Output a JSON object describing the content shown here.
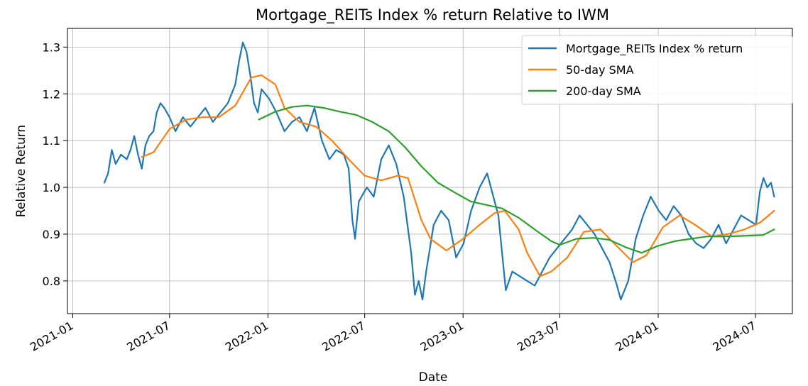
{
  "chart_data": {
    "type": "line",
    "title": "Mortgage_REITs Index % return Relative to IWM",
    "xlabel": "Date",
    "ylabel": "Relative Return",
    "xlim": [
      "2020-12-22",
      "2024-09-08"
    ],
    "ylim": [
      0.73,
      1.34
    ],
    "x_ticks": [
      "2021-01",
      "2021-07",
      "2022-01",
      "2022-07",
      "2023-01",
      "2023-07",
      "2024-01",
      "2024-07"
    ],
    "y_ticks": [
      0.8,
      0.9,
      1.0,
      1.1,
      1.2,
      1.3
    ],
    "y_tick_labels": [
      "0.8",
      "0.9",
      "1.0",
      "1.1",
      "1.2",
      "1.3"
    ],
    "grid": true,
    "legend_position": "top-right",
    "series": [
      {
        "name": "Mortgage_REITs Index % return",
        "color": "#1f77b4",
        "points": [
          [
            "2021-03-01",
            1.01
          ],
          [
            "2021-03-08",
            1.03
          ],
          [
            "2021-03-15",
            1.08
          ],
          [
            "2021-03-22",
            1.05
          ],
          [
            "2021-04-01",
            1.07
          ],
          [
            "2021-04-12",
            1.06
          ],
          [
            "2021-04-19",
            1.08
          ],
          [
            "2021-04-26",
            1.11
          ],
          [
            "2021-05-03",
            1.07
          ],
          [
            "2021-05-10",
            1.04
          ],
          [
            "2021-05-17",
            1.09
          ],
          [
            "2021-05-24",
            1.11
          ],
          [
            "2021-06-01",
            1.12
          ],
          [
            "2021-06-07",
            1.16
          ],
          [
            "2021-06-14",
            1.18
          ],
          [
            "2021-06-21",
            1.17
          ],
          [
            "2021-07-01",
            1.15
          ],
          [
            "2021-07-12",
            1.12
          ],
          [
            "2021-07-26",
            1.15
          ],
          [
            "2021-08-09",
            1.13
          ],
          [
            "2021-08-23",
            1.15
          ],
          [
            "2021-09-06",
            1.17
          ],
          [
            "2021-09-20",
            1.14
          ],
          [
            "2021-10-04",
            1.16
          ],
          [
            "2021-10-18",
            1.18
          ],
          [
            "2021-11-01",
            1.22
          ],
          [
            "2021-11-08",
            1.27
          ],
          [
            "2021-11-15",
            1.31
          ],
          [
            "2021-11-22",
            1.29
          ],
          [
            "2021-11-29",
            1.24
          ],
          [
            "2021-12-06",
            1.18
          ],
          [
            "2021-12-13",
            1.16
          ],
          [
            "2021-12-20",
            1.21
          ],
          [
            "2022-01-03",
            1.19
          ],
          [
            "2022-01-17",
            1.16
          ],
          [
            "2022-02-01",
            1.12
          ],
          [
            "2022-02-15",
            1.14
          ],
          [
            "2022-03-01",
            1.15
          ],
          [
            "2022-03-15",
            1.12
          ],
          [
            "2022-03-29",
            1.17
          ],
          [
            "2022-04-12",
            1.1
          ],
          [
            "2022-04-26",
            1.06
          ],
          [
            "2022-05-09",
            1.08
          ],
          [
            "2022-05-23",
            1.07
          ],
          [
            "2022-06-01",
            1.04
          ],
          [
            "2022-06-08",
            0.93
          ],
          [
            "2022-06-13",
            0.89
          ],
          [
            "2022-06-20",
            0.97
          ],
          [
            "2022-07-05",
            1.0
          ],
          [
            "2022-07-18",
            0.98
          ],
          [
            "2022-08-01",
            1.06
          ],
          [
            "2022-08-15",
            1.09
          ],
          [
            "2022-08-29",
            1.05
          ],
          [
            "2022-09-12",
            0.98
          ],
          [
            "2022-09-26",
            0.86
          ],
          [
            "2022-10-03",
            0.77
          ],
          [
            "2022-10-10",
            0.8
          ],
          [
            "2022-10-17",
            0.76
          ],
          [
            "2022-10-24",
            0.82
          ],
          [
            "2022-11-07",
            0.92
          ],
          [
            "2022-11-21",
            0.95
          ],
          [
            "2022-12-05",
            0.93
          ],
          [
            "2022-12-19",
            0.85
          ],
          [
            "2023-01-02",
            0.88
          ],
          [
            "2023-01-16",
            0.95
          ],
          [
            "2023-02-01",
            1.0
          ],
          [
            "2023-02-15",
            1.03
          ],
          [
            "2023-03-01",
            0.97
          ],
          [
            "2023-03-08",
            0.94
          ],
          [
            "2023-03-15",
            0.86
          ],
          [
            "2023-03-22",
            0.78
          ],
          [
            "2023-04-03",
            0.82
          ],
          [
            "2023-04-17",
            0.81
          ],
          [
            "2023-05-01",
            0.8
          ],
          [
            "2023-05-15",
            0.79
          ],
          [
            "2023-05-29",
            0.82
          ],
          [
            "2023-06-12",
            0.85
          ],
          [
            "2023-06-26",
            0.87
          ],
          [
            "2023-07-10",
            0.89
          ],
          [
            "2023-07-24",
            0.91
          ],
          [
            "2023-08-07",
            0.94
          ],
          [
            "2023-08-21",
            0.92
          ],
          [
            "2023-09-04",
            0.9
          ],
          [
            "2023-09-18",
            0.87
          ],
          [
            "2023-10-02",
            0.84
          ],
          [
            "2023-10-16",
            0.79
          ],
          [
            "2023-10-23",
            0.76
          ],
          [
            "2023-11-06",
            0.8
          ],
          [
            "2023-11-20",
            0.89
          ],
          [
            "2023-12-04",
            0.94
          ],
          [
            "2023-12-18",
            0.98
          ],
          [
            "2024-01-02",
            0.95
          ],
          [
            "2024-01-16",
            0.93
          ],
          [
            "2024-01-30",
            0.96
          ],
          [
            "2024-02-13",
            0.94
          ],
          [
            "2024-02-27",
            0.9
          ],
          [
            "2024-03-12",
            0.88
          ],
          [
            "2024-03-26",
            0.87
          ],
          [
            "2024-04-09",
            0.89
          ],
          [
            "2024-04-23",
            0.92
          ],
          [
            "2024-05-07",
            0.88
          ],
          [
            "2024-05-21",
            0.91
          ],
          [
            "2024-06-04",
            0.94
          ],
          [
            "2024-06-18",
            0.93
          ],
          [
            "2024-07-02",
            0.92
          ],
          [
            "2024-07-09",
            0.99
          ],
          [
            "2024-07-16",
            1.02
          ],
          [
            "2024-07-23",
            1.0
          ],
          [
            "2024-07-30",
            1.01
          ],
          [
            "2024-08-05",
            0.98
          ]
        ]
      },
      {
        "name": "50-day SMA",
        "color": "#ff7f0e",
        "points": [
          [
            "2021-05-10",
            1.065
          ],
          [
            "2021-06-01",
            1.075
          ],
          [
            "2021-07-01",
            1.125
          ],
          [
            "2021-08-01",
            1.145
          ],
          [
            "2021-09-01",
            1.15
          ],
          [
            "2021-10-01",
            1.15
          ],
          [
            "2021-11-01",
            1.175
          ],
          [
            "2021-12-01",
            1.235
          ],
          [
            "2021-12-20",
            1.24
          ],
          [
            "2022-01-15",
            1.22
          ],
          [
            "2022-02-01",
            1.17
          ],
          [
            "2022-03-01",
            1.14
          ],
          [
            "2022-04-01",
            1.13
          ],
          [
            "2022-05-01",
            1.1
          ],
          [
            "2022-06-01",
            1.06
          ],
          [
            "2022-07-01",
            1.025
          ],
          [
            "2022-08-01",
            1.015
          ],
          [
            "2022-09-01",
            1.025
          ],
          [
            "2022-09-20",
            1.02
          ],
          [
            "2022-10-15",
            0.93
          ],
          [
            "2022-11-01",
            0.89
          ],
          [
            "2022-12-01",
            0.865
          ],
          [
            "2023-01-01",
            0.89
          ],
          [
            "2023-02-01",
            0.92
          ],
          [
            "2023-03-01",
            0.945
          ],
          [
            "2023-03-20",
            0.95
          ],
          [
            "2023-04-15",
            0.91
          ],
          [
            "2023-05-01",
            0.86
          ],
          [
            "2023-05-25",
            0.81
          ],
          [
            "2023-06-15",
            0.82
          ],
          [
            "2023-07-15",
            0.85
          ],
          [
            "2023-08-15",
            0.905
          ],
          [
            "2023-09-15",
            0.91
          ],
          [
            "2023-10-15",
            0.875
          ],
          [
            "2023-11-15",
            0.84
          ],
          [
            "2023-12-10",
            0.855
          ],
          [
            "2024-01-10",
            0.915
          ],
          [
            "2024-02-10",
            0.94
          ],
          [
            "2024-03-10",
            0.92
          ],
          [
            "2024-04-10",
            0.895
          ],
          [
            "2024-05-10",
            0.9
          ],
          [
            "2024-06-10",
            0.91
          ],
          [
            "2024-07-10",
            0.925
          ],
          [
            "2024-08-05",
            0.95
          ]
        ]
      },
      {
        "name": "200-day SMA",
        "color": "#2ca02c",
        "points": [
          [
            "2021-12-15",
            1.145
          ],
          [
            "2022-01-15",
            1.162
          ],
          [
            "2022-02-15",
            1.172
          ],
          [
            "2022-03-15",
            1.175
          ],
          [
            "2022-04-15",
            1.17
          ],
          [
            "2022-05-15",
            1.162
          ],
          [
            "2022-06-15",
            1.155
          ],
          [
            "2022-07-15",
            1.14
          ],
          [
            "2022-08-15",
            1.12
          ],
          [
            "2022-09-15",
            1.085
          ],
          [
            "2022-10-15",
            1.045
          ],
          [
            "2022-11-15",
            1.01
          ],
          [
            "2022-12-15",
            0.99
          ],
          [
            "2023-01-15",
            0.97
          ],
          [
            "2023-02-15",
            0.962
          ],
          [
            "2023-03-15",
            0.955
          ],
          [
            "2023-04-15",
            0.935
          ],
          [
            "2023-05-15",
            0.91
          ],
          [
            "2023-06-15",
            0.885
          ],
          [
            "2023-07-01",
            0.877
          ],
          [
            "2023-08-01",
            0.89
          ],
          [
            "2023-09-01",
            0.892
          ],
          [
            "2023-10-01",
            0.888
          ],
          [
            "2023-11-01",
            0.872
          ],
          [
            "2023-12-01",
            0.86
          ],
          [
            "2024-01-01",
            0.875
          ],
          [
            "2024-02-01",
            0.885
          ],
          [
            "2024-03-01",
            0.89
          ],
          [
            "2024-04-01",
            0.895
          ],
          [
            "2024-05-01",
            0.895
          ],
          [
            "2024-06-01",
            0.896
          ],
          [
            "2024-07-15",
            0.898
          ],
          [
            "2024-08-05",
            0.91
          ]
        ]
      }
    ]
  }
}
